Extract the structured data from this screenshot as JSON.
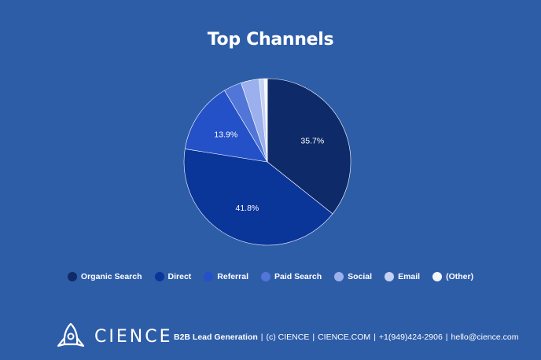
{
  "chart_data": {
    "type": "pie",
    "title": "Top Channels",
    "slices": [
      {
        "label": "Organic Search",
        "value": 35.7,
        "color": "#0e2a68",
        "data_label": "35.7%"
      },
      {
        "label": "Direct",
        "value": 41.8,
        "color": "#0a3599",
        "data_label": "41.8%"
      },
      {
        "label": "Referral",
        "value": 13.9,
        "color": "#2451c8",
        "data_label": "13.9%"
      },
      {
        "label": "Paid Search",
        "value": 3.5,
        "color": "#5275d8",
        "data_label": ""
      },
      {
        "label": "Social",
        "value": 3.5,
        "color": "#9bb0ec",
        "data_label": ""
      },
      {
        "label": "Email",
        "value": 1.0,
        "color": "#c6d2f4",
        "data_label": ""
      },
      {
        "label": "(Other)",
        "value": 0.6,
        "color": "#f4f6fd",
        "data_label": ""
      }
    ],
    "legend_position": "bottom",
    "start_angle_deg": 0,
    "direction": "clockwise"
  },
  "footer": {
    "logo_text": "CIENCE",
    "tagline": "B2B Lead Generation",
    "items": [
      "(c) CIENCE",
      "CIENCE.COM",
      "+1(949)424-2906",
      "hello@cience.com"
    ],
    "separator": "|"
  },
  "colors": {
    "background": "#2e5da8",
    "text": "#ffffff"
  }
}
